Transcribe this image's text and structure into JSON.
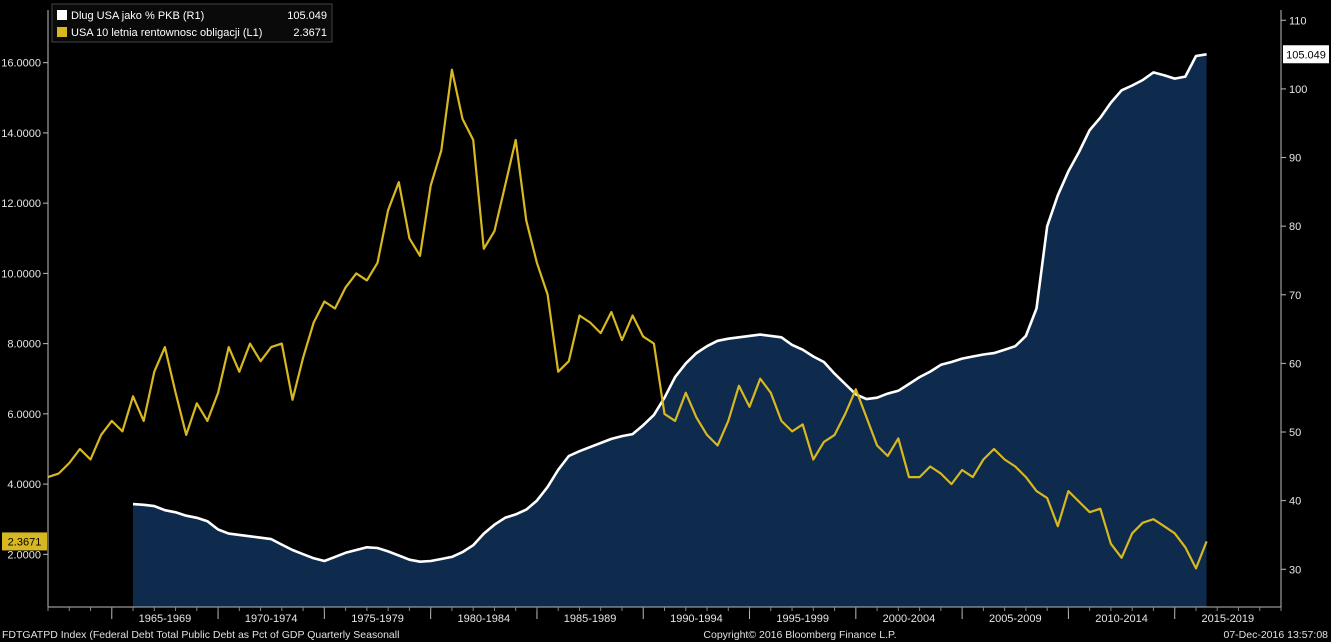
{
  "chart_data": {
    "type": "line",
    "x_range": [
      1962,
      2020
    ],
    "x_tick_labels": [
      "1965-1969",
      "1970-1974",
      "1975-1979",
      "1980-1984",
      "1985-1989",
      "1990-1994",
      "1995-1999",
      "2000-2004",
      "2005-2009",
      "2010-2014",
      "2015-2019"
    ],
    "y_left": {
      "ylim": [
        0.5,
        17.5
      ],
      "ticks": [
        2,
        4,
        6,
        8,
        10,
        12,
        14,
        16
      ],
      "tick_labels": [
        "2.0000",
        "4.0000",
        "6.0000",
        "8.0000",
        "10.0000",
        "12.0000",
        "14.0000",
        "16.0000"
      ]
    },
    "y_right": {
      "ylim": [
        24.5,
        111.5
      ],
      "ticks": [
        30,
        40,
        50,
        60,
        70,
        80,
        90,
        100,
        110
      ],
      "tick_labels": [
        "30",
        "40",
        "50",
        "60",
        "70",
        "80",
        "90",
        "100",
        "110"
      ]
    },
    "series": [
      {
        "name": "Dlug USA jako % PKB (R1)",
        "axis": "right",
        "style": "area",
        "color": "#ffffff",
        "fill": "#0e2a4c",
        "last_value": "105.049",
        "x": [
          1966.0,
          1966.5,
          1967.0,
          1967.5,
          1968.0,
          1968.5,
          1969.0,
          1969.5,
          1970.0,
          1970.5,
          1971.0,
          1971.5,
          1972.0,
          1972.5,
          1973.0,
          1973.5,
          1974.0,
          1974.5,
          1975.0,
          1975.5,
          1976.0,
          1976.5,
          1977.0,
          1977.5,
          1978.0,
          1978.5,
          1979.0,
          1979.5,
          1980.0,
          1980.5,
          1981.0,
          1981.5,
          1982.0,
          1982.5,
          1983.0,
          1983.5,
          1984.0,
          1984.5,
          1985.0,
          1985.5,
          1986.0,
          1986.5,
          1987.0,
          1987.5,
          1988.0,
          1988.5,
          1989.0,
          1989.5,
          1990.0,
          1990.5,
          1991.0,
          1991.5,
          1992.0,
          1992.5,
          1993.0,
          1993.5,
          1994.0,
          1994.5,
          1995.0,
          1995.5,
          1996.0,
          1996.5,
          1997.0,
          1997.5,
          1998.0,
          1998.5,
          1999.0,
          1999.5,
          2000.0,
          2000.5,
          2001.0,
          2001.5,
          2002.0,
          2002.5,
          2003.0,
          2003.5,
          2004.0,
          2004.5,
          2005.0,
          2005.5,
          2006.0,
          2006.5,
          2007.0,
          2007.5,
          2008.0,
          2008.5,
          2009.0,
          2009.5,
          2010.0,
          2010.5,
          2011.0,
          2011.5,
          2012.0,
          2012.5,
          2013.0,
          2013.5,
          2014.0,
          2014.5,
          2015.0,
          2015.5,
          2016.0,
          2016.5
        ],
        "values": [
          39.5,
          39.4,
          39.2,
          38.6,
          38.3,
          37.8,
          37.5,
          37.0,
          35.8,
          35.2,
          35.0,
          34.8,
          34.6,
          34.4,
          33.6,
          32.8,
          32.2,
          31.6,
          31.2,
          31.8,
          32.4,
          32.8,
          33.2,
          33.1,
          32.6,
          32.0,
          31.4,
          31.1,
          31.2,
          31.5,
          31.8,
          32.5,
          33.5,
          35.2,
          36.5,
          37.5,
          38.0,
          38.7,
          40.0,
          42.0,
          44.5,
          46.5,
          47.2,
          47.8,
          48.4,
          49.0,
          49.4,
          49.7,
          51.0,
          52.5,
          55.0,
          58.0,
          60.0,
          61.5,
          62.5,
          63.3,
          63.6,
          63.8,
          64.0,
          64.2,
          64.0,
          63.8,
          62.7,
          62.0,
          61.0,
          60.2,
          58.5,
          57.0,
          55.5,
          54.8,
          55.0,
          55.6,
          56.0,
          57.0,
          58.0,
          58.8,
          59.8,
          60.2,
          60.7,
          61.0,
          61.3,
          61.5,
          62.0,
          62.5,
          64.0,
          68.0,
          80.0,
          84.5,
          88.0,
          90.8,
          94.0,
          95.8,
          98.0,
          99.8,
          100.5,
          101.3,
          102.4,
          102.0,
          101.5,
          101.8,
          104.8,
          105.05
        ]
      },
      {
        "name": "USA 10 letnia rentownosc obligacji (L1)",
        "axis": "left",
        "style": "line",
        "color": "#d8b821",
        "last_value": "2.3671",
        "x": [
          1962.0,
          1962.5,
          1963.0,
          1963.5,
          1964.0,
          1964.5,
          1965.0,
          1965.5,
          1966.0,
          1966.5,
          1967.0,
          1967.5,
          1968.0,
          1968.5,
          1969.0,
          1969.5,
          1970.0,
          1970.5,
          1971.0,
          1971.5,
          1972.0,
          1972.5,
          1973.0,
          1973.5,
          1974.0,
          1974.5,
          1975.0,
          1975.5,
          1976.0,
          1976.5,
          1977.0,
          1977.5,
          1978.0,
          1978.5,
          1979.0,
          1979.5,
          1980.0,
          1980.5,
          1981.0,
          1981.5,
          1982.0,
          1982.5,
          1983.0,
          1983.5,
          1984.0,
          1984.5,
          1985.0,
          1985.5,
          1986.0,
          1986.5,
          1987.0,
          1987.5,
          1988.0,
          1988.5,
          1989.0,
          1989.5,
          1990.0,
          1990.5,
          1991.0,
          1991.5,
          1992.0,
          1992.5,
          1993.0,
          1993.5,
          1994.0,
          1994.5,
          1995.0,
          1995.5,
          1996.0,
          1996.5,
          1997.0,
          1997.5,
          1998.0,
          1998.5,
          1999.0,
          1999.5,
          2000.0,
          2000.5,
          2001.0,
          2001.5,
          2002.0,
          2002.5,
          2003.0,
          2003.5,
          2004.0,
          2004.5,
          2005.0,
          2005.5,
          2006.0,
          2006.5,
          2007.0,
          2007.5,
          2008.0,
          2008.5,
          2009.0,
          2009.5,
          2010.0,
          2010.5,
          2011.0,
          2011.5,
          2012.0,
          2012.5,
          2013.0,
          2013.5,
          2014.0,
          2014.5,
          2015.0,
          2015.5,
          2016.0,
          2016.5
        ],
        "values": [
          4.2,
          4.3,
          4.6,
          5.0,
          4.7,
          5.4,
          5.8,
          5.5,
          6.5,
          5.8,
          7.2,
          7.9,
          6.6,
          5.4,
          6.3,
          5.8,
          6.6,
          7.9,
          7.2,
          8.0,
          7.5,
          7.9,
          8.0,
          6.4,
          7.6,
          8.6,
          9.2,
          9.0,
          9.6,
          10.0,
          9.8,
          10.3,
          11.8,
          12.6,
          11.0,
          10.5,
          12.5,
          13.5,
          15.8,
          14.4,
          13.8,
          10.7,
          11.2,
          12.5,
          13.8,
          11.5,
          10.3,
          9.4,
          7.2,
          7.5,
          8.8,
          8.6,
          8.3,
          8.9,
          8.1,
          8.8,
          8.2,
          8.0,
          6.0,
          5.8,
          6.6,
          5.9,
          5.4,
          5.1,
          5.8,
          6.8,
          6.2,
          7.0,
          6.6,
          5.8,
          5.5,
          5.7,
          4.7,
          5.2,
          5.4,
          6.0,
          6.7,
          5.9,
          5.1,
          4.8,
          5.3,
          4.2,
          4.2,
          4.5,
          4.3,
          4.0,
          4.4,
          4.2,
          4.7,
          5.0,
          4.7,
          4.5,
          4.2,
          3.8,
          3.6,
          2.8,
          3.8,
          3.5,
          3.2,
          3.3,
          2.3,
          1.9,
          2.6,
          2.9,
          3.0,
          2.8,
          2.6,
          2.2,
          1.6,
          2.3671
        ]
      }
    ],
    "legend": {
      "position": "top-left"
    },
    "grid": false,
    "footer": {
      "left": "FDTGATPD Index (Federal Debt Total Public Debt as Pct of GDP Quarterly Seasonall",
      "center": "Copyright© 2016 Bloomberg Finance L.P.",
      "right": "07-Dec-2016 13:57:08"
    }
  }
}
